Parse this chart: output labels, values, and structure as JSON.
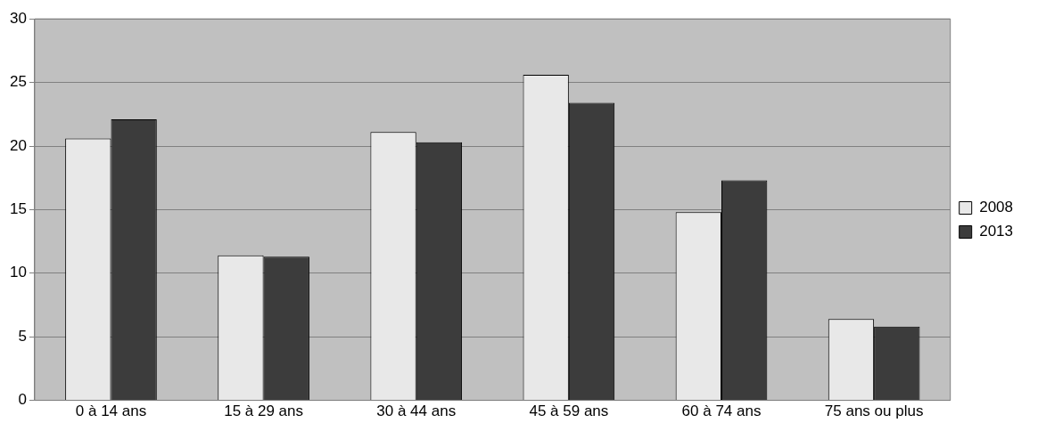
{
  "chart_data": {
    "type": "bar",
    "categories": [
      "0 à 14 ans",
      "15 à 29 ans",
      "30 à 44 ans",
      "45 à 59 ans",
      "60 à 74 ans",
      "75 ans ou plus"
    ],
    "series": [
      {
        "name": "2008",
        "color": "#e8e8e8",
        "values": [
          20.6,
          11.4,
          21.1,
          25.6,
          14.8,
          6.4
        ]
      },
      {
        "name": "2013",
        "color": "#3c3c3c",
        "values": [
          22.1,
          11.3,
          20.3,
          23.4,
          17.3,
          5.8
        ]
      }
    ],
    "ylim": [
      0,
      30
    ],
    "yticks": [
      0,
      5,
      10,
      15,
      20,
      25,
      30
    ],
    "grid": "y",
    "legend": "right"
  }
}
